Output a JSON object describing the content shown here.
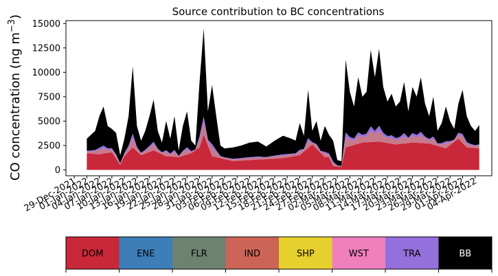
{
  "chart_data": {
    "type": "area",
    "stacked": true,
    "title": "Source contribution to BC concentrations",
    "ylabel": "CO concentration (ng m−3)",
    "ylabel_main": "CO concentration (ng m",
    "ylabel_exp": "−3",
    "ylabel_close": ")",
    "xlabel": "",
    "ylim": [
      -600,
      15300
    ],
    "yticks": [
      0,
      2500,
      5000,
      7500,
      10000,
      12500,
      15000
    ],
    "ytick_labels": [
      "0",
      "2500",
      "5000",
      "7500",
      "10000",
      "12500",
      "15000"
    ],
    "xrange": [
      "2021-12-27",
      "2022-04-08"
    ],
    "data_range": [
      "2022-01-01",
      "2022-04-05"
    ],
    "xtick_labels": [
      "29-Dec-2021",
      "01-Jan-2022",
      "04-Jan-2022",
      "07-Jan-2022",
      "10-Jan-2022",
      "13-Jan-2022",
      "16-Jan-2022",
      "19-Jan-2022",
      "22-Jan-2022",
      "25-Jan-2022",
      "28-Jan-2022",
      "31-Jan-2022",
      "03-Feb-2022",
      "06-Feb-2022",
      "09-Feb-2022",
      "12-Feb-2022",
      "15-Feb-2022",
      "18-Feb-2022",
      "21-Feb-2022",
      "24-Feb-2022",
      "27-Feb-2022",
      "02-Mar-2022",
      "05-Mar-2022",
      "08-Mar-2022",
      "11-Mar-2022",
      "14-Mar-2022",
      "17-Mar-2022",
      "20-Mar-2022",
      "23-Mar-2022",
      "26-Mar-2022",
      "29-Mar-2022",
      "01-Apr-2022",
      "04-Apr-2022"
    ],
    "series_names": [
      "DOM",
      "ENE",
      "FLR",
      "IND",
      "SHP",
      "WST",
      "TRA",
      "BB"
    ],
    "series_colors": [
      "#c8283a",
      "#3d7eb8",
      "#6e8272",
      "#cc6457",
      "#e6d02e",
      "#f07fbd",
      "#9370db",
      "#000000"
    ],
    "legend": "bottom",
    "grid": false,
    "total": {
      "dates": [
        "2022-01-01",
        "2022-01-03",
        "2022-01-04",
        "2022-01-05",
        "2022-01-06",
        "2022-01-07",
        "2022-01-08",
        "2022-01-09",
        "2022-01-10",
        "2022-01-11",
        "2022-01-12",
        "2022-01-13",
        "2022-01-14",
        "2022-01-15",
        "2022-01-16",
        "2022-01-17",
        "2022-01-18",
        "2022-01-19",
        "2022-01-20",
        "2022-01-21",
        "2022-01-22",
        "2022-01-23",
        "2022-01-24",
        "2022-01-25",
        "2022-01-26",
        "2022-01-27",
        "2022-01-28",
        "2022-01-29",
        "2022-01-30",
        "2022-01-31",
        "2022-02-01",
        "2022-02-02",
        "2022-02-03",
        "2022-02-05",
        "2022-02-07",
        "2022-02-09",
        "2022-02-11",
        "2022-02-13",
        "2022-02-15",
        "2022-02-17",
        "2022-02-19",
        "2022-02-20",
        "2022-02-21",
        "2022-02-22",
        "2022-02-23",
        "2022-02-24",
        "2022-02-25",
        "2022-02-26",
        "2022-02-27",
        "2022-02-28",
        "2022-03-01",
        "2022-03-02",
        "2022-03-03",
        "2022-03-04",
        "2022-03-05",
        "2022-03-06",
        "2022-03-07",
        "2022-03-08",
        "2022-03-09",
        "2022-03-10",
        "2022-03-11",
        "2022-03-12",
        "2022-03-13",
        "2022-03-14",
        "2022-03-15",
        "2022-03-16",
        "2022-03-17",
        "2022-03-18",
        "2022-03-19",
        "2022-03-20",
        "2022-03-21",
        "2022-03-22",
        "2022-03-23",
        "2022-03-24",
        "2022-03-25",
        "2022-03-26",
        "2022-03-27",
        "2022-03-28",
        "2022-03-29",
        "2022-03-30",
        "2022-03-31",
        "2022-04-01",
        "2022-04-02",
        "2022-04-03",
        "2022-04-04",
        "2022-04-05"
      ],
      "values": [
        3200,
        4000,
        5500,
        6500,
        4500,
        4200,
        3800,
        1500,
        3200,
        5500,
        10600,
        4500,
        3000,
        4000,
        5500,
        7200,
        4000,
        2800,
        5000,
        3200,
        5500,
        2000,
        4500,
        6000,
        3000,
        2500,
        9000,
        14500,
        6000,
        8700,
        5500,
        2500,
        2200,
        2300,
        2500,
        2800,
        2900,
        2400,
        3000,
        3500,
        3200,
        3000,
        4800,
        3500,
        8200,
        4000,
        5000,
        3000,
        4500,
        3600,
        3000,
        1000,
        900,
        11300,
        8000,
        6500,
        9500,
        7500,
        8000,
        12300,
        9500,
        12400,
        8500,
        7000,
        7800,
        6500,
        7000,
        9000,
        6000,
        8500,
        7500,
        9500,
        6800,
        5500,
        7500,
        4000,
        4800,
        6500,
        5000,
        4200,
        6800,
        8200,
        5500,
        4500,
        4000,
        4600
      ]
    },
    "dom": {
      "dates": [
        "2022-01-01",
        "2022-01-04",
        "2022-01-07",
        "2022-01-09",
        "2022-01-10",
        "2022-01-12",
        "2022-01-14",
        "2022-01-17",
        "2022-01-20",
        "2022-01-23",
        "2022-01-26",
        "2022-01-28",
        "2022-01-29",
        "2022-01-31",
        "2022-02-02",
        "2022-02-05",
        "2022-02-09",
        "2022-02-13",
        "2022-02-17",
        "2022-02-21",
        "2022-02-24",
        "2022-02-27",
        "2022-02-28",
        "2022-03-01",
        "2022-03-03",
        "2022-03-04",
        "2022-03-08",
        "2022-03-12",
        "2022-03-16",
        "2022-03-20",
        "2022-03-24",
        "2022-03-28",
        "2022-03-31",
        "2022-04-02",
        "2022-04-05"
      ],
      "values": [
        1700,
        1600,
        1800,
        500,
        1400,
        2300,
        1500,
        2000,
        1400,
        1300,
        1700,
        2300,
        3600,
        1400,
        1200,
        900,
        1000,
        1100,
        1200,
        1500,
        2600,
        1300,
        1300,
        400,
        300,
        2300,
        2800,
        2900,
        2600,
        2800,
        2700,
        2200,
        3200,
        2300,
        2200
      ]
    },
    "mid_fraction": 0.12,
    "purple_fraction": 0.05,
    "legend_labels": [
      "DOM",
      "ENE",
      "FLR",
      "IND",
      "SHP",
      "WST",
      "TRA",
      "BB"
    ],
    "legend_text_colors": [
      "#000000",
      "#000000",
      "#000000",
      "#000000",
      "#000000",
      "#000000",
      "#000000",
      "#ffffff"
    ]
  }
}
